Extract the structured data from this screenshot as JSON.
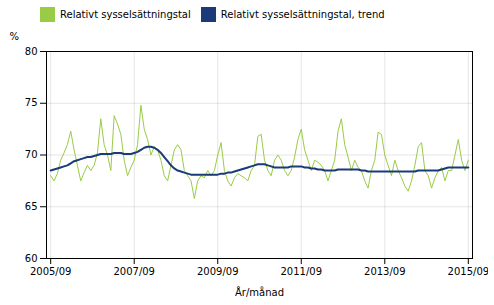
{
  "chart_data": {
    "type": "line",
    "xlabel": "År/månad",
    "ylabel": "%",
    "x": [
      2005.75,
      2005.83,
      2005.91,
      2005.99,
      2006.07,
      2006.15,
      2006.23,
      2006.31,
      2006.39,
      2006.47,
      2006.55,
      2006.63,
      2006.71,
      2006.79,
      2006.87,
      2006.95,
      2007.03,
      2007.11,
      2007.19,
      2007.27,
      2007.35,
      2007.43,
      2007.51,
      2007.59,
      2007.67,
      2007.75,
      2007.83,
      2007.91,
      2007.99,
      2008.07,
      2008.15,
      2008.23,
      2008.31,
      2008.39,
      2008.47,
      2008.55,
      2008.63,
      2008.71,
      2008.79,
      2008.87,
      2008.95,
      2009.03,
      2009.11,
      2009.19,
      2009.27,
      2009.35,
      2009.43,
      2009.51,
      2009.59,
      2009.67,
      2009.75,
      2009.83,
      2009.91,
      2009.99,
      2010.07,
      2010.15,
      2010.23,
      2010.31,
      2010.39,
      2010.47,
      2010.55,
      2010.63,
      2010.71,
      2010.79,
      2010.87,
      2010.95,
      2011.03,
      2011.11,
      2011.19,
      2011.27,
      2011.35,
      2011.43,
      2011.51,
      2011.59,
      2011.67,
      2011.75,
      2011.83,
      2011.91,
      2011.99,
      2012.07,
      2012.15,
      2012.23,
      2012.31,
      2012.39,
      2012.47,
      2012.55,
      2012.63,
      2012.71,
      2012.79,
      2012.87,
      2012.95,
      2013.03,
      2013.11,
      2013.19,
      2013.27,
      2013.35,
      2013.43,
      2013.51,
      2013.59,
      2013.67,
      2013.75,
      2013.83,
      2013.91,
      2013.99,
      2014.07,
      2014.15,
      2014.23,
      2014.31,
      2014.39,
      2014.47,
      2014.55,
      2014.63,
      2014.71,
      2014.79,
      2014.87,
      2014.95,
      2015.03,
      2015.11,
      2015.19,
      2015.27,
      2015.35,
      2015.43,
      2015.51,
      2015.59,
      2015.67,
      2015.75
    ],
    "series": [
      {
        "name": "Relativt sysselsättningstal",
        "color": "#99cc44",
        "values": [
          68.0,
          67.5,
          68.2,
          69.5,
          70.2,
          71.0,
          72.3,
          70.5,
          69.0,
          67.5,
          68.3,
          69.0,
          68.5,
          69.0,
          70.2,
          73.5,
          71.0,
          70.0,
          68.5,
          73.8,
          73.0,
          72.0,
          69.5,
          68.0,
          68.8,
          69.5,
          71.0,
          74.8,
          72.5,
          71.5,
          70.0,
          70.8,
          70.5,
          69.5,
          68.0,
          67.5,
          69.0,
          70.5,
          71.0,
          70.5,
          68.5,
          68.0,
          67.5,
          65.8,
          67.5,
          68.0,
          67.8,
          68.5,
          68.0,
          68.5,
          70.0,
          71.2,
          68.5,
          67.5,
          67.0,
          67.8,
          68.2,
          68.0,
          67.8,
          67.5,
          68.5,
          69.0,
          71.8,
          72.0,
          69.5,
          68.5,
          68.0,
          69.5,
          70.0,
          69.5,
          68.5,
          68.0,
          68.5,
          69.8,
          71.5,
          72.5,
          70.5,
          69.5,
          68.5,
          69.5,
          69.3,
          69.0,
          68.5,
          67.5,
          68.5,
          69.5,
          72.3,
          73.5,
          71.0,
          69.8,
          68.5,
          69.5,
          68.8,
          68.5,
          67.5,
          66.8,
          68.5,
          69.5,
          72.2,
          72.0,
          70.0,
          69.0,
          68.0,
          69.5,
          68.5,
          67.8,
          67.0,
          66.5,
          67.5,
          69.0,
          70.8,
          71.2,
          68.5,
          68.0,
          66.8,
          67.8,
          68.5,
          68.8,
          67.5,
          68.5,
          68.5,
          70.0,
          71.5,
          69.5,
          68.5,
          69.5
        ]
      },
      {
        "name": "Relativt sysselsättningstal, trend",
        "color": "#1a3a7a",
        "values": [
          68.5,
          68.6,
          68.7,
          68.8,
          68.9,
          69.0,
          69.2,
          69.4,
          69.5,
          69.6,
          69.7,
          69.8,
          69.8,
          69.9,
          70.0,
          70.1,
          70.1,
          70.1,
          70.1,
          70.2,
          70.2,
          70.2,
          70.1,
          70.1,
          70.1,
          70.2,
          70.3,
          70.5,
          70.7,
          70.8,
          70.8,
          70.7,
          70.5,
          70.2,
          69.8,
          69.4,
          69.0,
          68.7,
          68.5,
          68.4,
          68.3,
          68.2,
          68.1,
          68.1,
          68.1,
          68.1,
          68.1,
          68.1,
          68.1,
          68.1,
          68.1,
          68.2,
          68.2,
          68.3,
          68.3,
          68.4,
          68.5,
          68.6,
          68.7,
          68.8,
          68.9,
          69.0,
          69.1,
          69.1,
          69.1,
          69.0,
          68.9,
          68.8,
          68.8,
          68.8,
          68.8,
          68.8,
          68.9,
          68.9,
          68.9,
          68.9,
          68.8,
          68.8,
          68.7,
          68.7,
          68.6,
          68.6,
          68.5,
          68.5,
          68.5,
          68.5,
          68.6,
          68.6,
          68.6,
          68.6,
          68.6,
          68.6,
          68.6,
          68.5,
          68.5,
          68.4,
          68.4,
          68.4,
          68.4,
          68.4,
          68.4,
          68.4,
          68.4,
          68.4,
          68.4,
          68.4,
          68.4,
          68.4,
          68.4,
          68.4,
          68.5,
          68.5,
          68.5,
          68.5,
          68.5,
          68.5,
          68.5,
          68.6,
          68.7,
          68.8,
          68.8,
          68.8,
          68.8,
          68.8,
          68.8,
          68.8
        ]
      }
    ],
    "xlim": [
      2005.65,
      2015.85
    ],
    "xticks": [
      {
        "value": 2005.75,
        "label": "2005/09"
      },
      {
        "value": 2007.75,
        "label": "2007/09"
      },
      {
        "value": 2009.75,
        "label": "2009/09"
      },
      {
        "value": 2011.75,
        "label": "2011/09"
      },
      {
        "value": 2013.75,
        "label": "2013/09"
      },
      {
        "value": 2015.75,
        "label": "2015/09"
      }
    ],
    "ylim": [
      60,
      80
    ],
    "yticks": [
      60,
      65,
      70,
      75,
      80
    ],
    "grid": true,
    "legend": "top"
  }
}
